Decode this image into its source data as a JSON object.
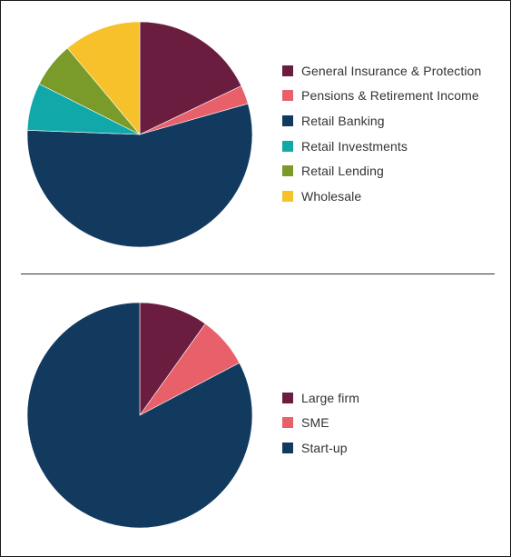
{
  "chart_data": [
    {
      "type": "pie",
      "title": "",
      "legend_position": "right",
      "start_angle": "12 o'clock",
      "direction": "clockwise",
      "slices": [
        {
          "label": "General Insurance & Protection",
          "value": 17.9,
          "color": "#6b1d3f"
        },
        {
          "label": "Pensions & Retirement Income",
          "value": 2.7,
          "color": "#e8606a"
        },
        {
          "label": "Retail Banking",
          "value": 55.0,
          "color": "#123a5f"
        },
        {
          "label": "Retail Investments",
          "value": 6.8,
          "color": "#11a8aa"
        },
        {
          "label": "Retail Lending",
          "value": 6.5,
          "color": "#7a9a2a"
        },
        {
          "label": "Wholesale",
          "value": 11.1,
          "color": "#f6c12b"
        }
      ]
    },
    {
      "type": "pie",
      "title": "",
      "legend_position": "right",
      "start_angle": "12 o'clock",
      "direction": "clockwise",
      "slices": [
        {
          "label": "Large firm",
          "value": 9.9,
          "color": "#6b1d3f"
        },
        {
          "label": "SME",
          "value": 7.4,
          "color": "#e8606a"
        },
        {
          "label": "Start-up",
          "value": 82.7,
          "color": "#123a5f"
        }
      ]
    }
  ]
}
